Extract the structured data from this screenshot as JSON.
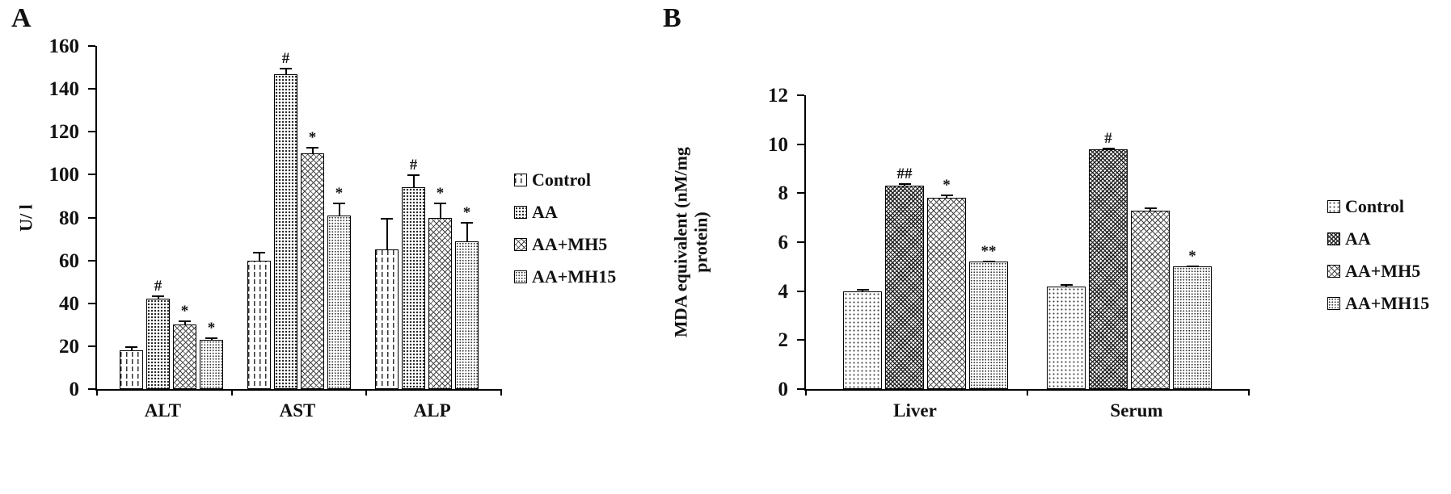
{
  "figure": {
    "background": "#ffffff",
    "ink_color": "#111111"
  },
  "chart_data": [
    {
      "type": "bar",
      "panel_label": "A",
      "title": "",
      "xlabel": "",
      "ylabel": "U/ l",
      "ylim": [
        0,
        160
      ],
      "ytick_step": 20,
      "grid": false,
      "legend_position": "right",
      "categories": [
        "ALT",
        "AST",
        "ALP"
      ],
      "series": [
        {
          "name": "Control",
          "pattern": "dashes-vertical",
          "values": [
            18,
            60,
            65
          ],
          "errors": [
            2,
            4,
            15
          ],
          "marks": [
            "",
            "",
            ""
          ]
        },
        {
          "name": "AA",
          "pattern": "dots-dense",
          "values": [
            42,
            147,
            94
          ],
          "errors": [
            1.5,
            3,
            6
          ],
          "marks": [
            "#",
            "#",
            "#"
          ]
        },
        {
          "name": "AA+MH5",
          "pattern": "crosshatch",
          "values": [
            30,
            110,
            80
          ],
          "errors": [
            2,
            3,
            7
          ],
          "marks": [
            "*",
            "*",
            "*"
          ]
        },
        {
          "name": "AA+MH15",
          "pattern": "dots-fine",
          "values": [
            23,
            81,
            69
          ],
          "errors": [
            1,
            6,
            9
          ],
          "marks": [
            "*",
            "*",
            "*"
          ]
        }
      ]
    },
    {
      "type": "bar",
      "panel_label": "B",
      "title": "",
      "xlabel": "",
      "ylabel": "MDA equivalent  (nM/mg\nprotein)",
      "ylim": [
        0,
        12
      ],
      "ytick_step": 2,
      "grid": false,
      "legend_position": "right",
      "categories": [
        "Liver",
        "Serum"
      ],
      "series": [
        {
          "name": "Control",
          "pattern": "dots-light",
          "values": [
            4.0,
            4.2
          ],
          "errors": [
            0.1,
            0.08
          ],
          "marks": [
            "",
            ""
          ]
        },
        {
          "name": "AA",
          "pattern": "crosshatch-dense",
          "values": [
            8.3,
            9.8
          ],
          "errors": [
            0.1,
            0.05
          ],
          "marks": [
            "##",
            "#"
          ]
        },
        {
          "name": "AA+MH5",
          "pattern": "crosshatch",
          "values": [
            7.8,
            7.3
          ],
          "errors": [
            0.15,
            0.12
          ],
          "marks": [
            "*",
            ""
          ]
        },
        {
          "name": "AA+MH15",
          "pattern": "dots-fine",
          "values": [
            5.2,
            5.0
          ],
          "errors": [
            0.05,
            0.05
          ],
          "marks": [
            "**",
            "*"
          ]
        }
      ]
    }
  ]
}
